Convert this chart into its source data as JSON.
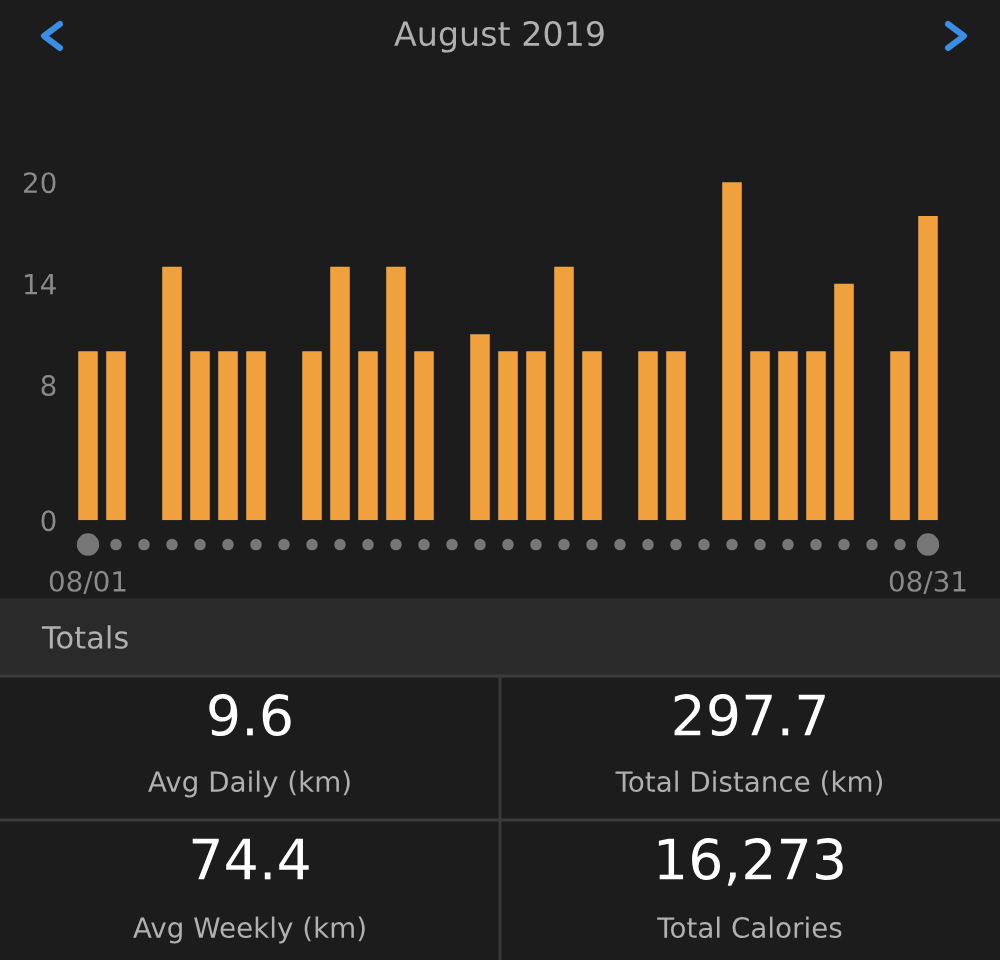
{
  "chart_data": {
    "type": "bar",
    "title": "August 2019",
    "categories": [
      "08/01",
      null,
      null,
      null,
      null,
      null,
      null,
      null,
      null,
      null,
      null,
      null,
      null,
      null,
      null,
      null,
      null,
      null,
      null,
      null,
      null,
      null,
      null,
      null,
      null,
      null,
      null,
      null,
      null,
      null,
      "08/31"
    ],
    "values": [
      10,
      10,
      0,
      15,
      10,
      10,
      10,
      0,
      10,
      15,
      10,
      15,
      10,
      0,
      11,
      10,
      10,
      15,
      10,
      0,
      10,
      10,
      0,
      20,
      10,
      10,
      10,
      14,
      0,
      10,
      18
    ],
    "color": "#f0a03c",
    "ylim": [
      0,
      20.5
    ],
    "yticks": [
      0,
      8,
      14,
      20
    ],
    "grid": false,
    "legend": false,
    "annotations": [
      "Totals",
      "9.6",
      "Avg Daily (km)",
      "297.7",
      "Total Distance (km)",
      "74.4",
      "Avg Weekly (km)",
      "16,273",
      "Total Calories"
    ]
  }
}
